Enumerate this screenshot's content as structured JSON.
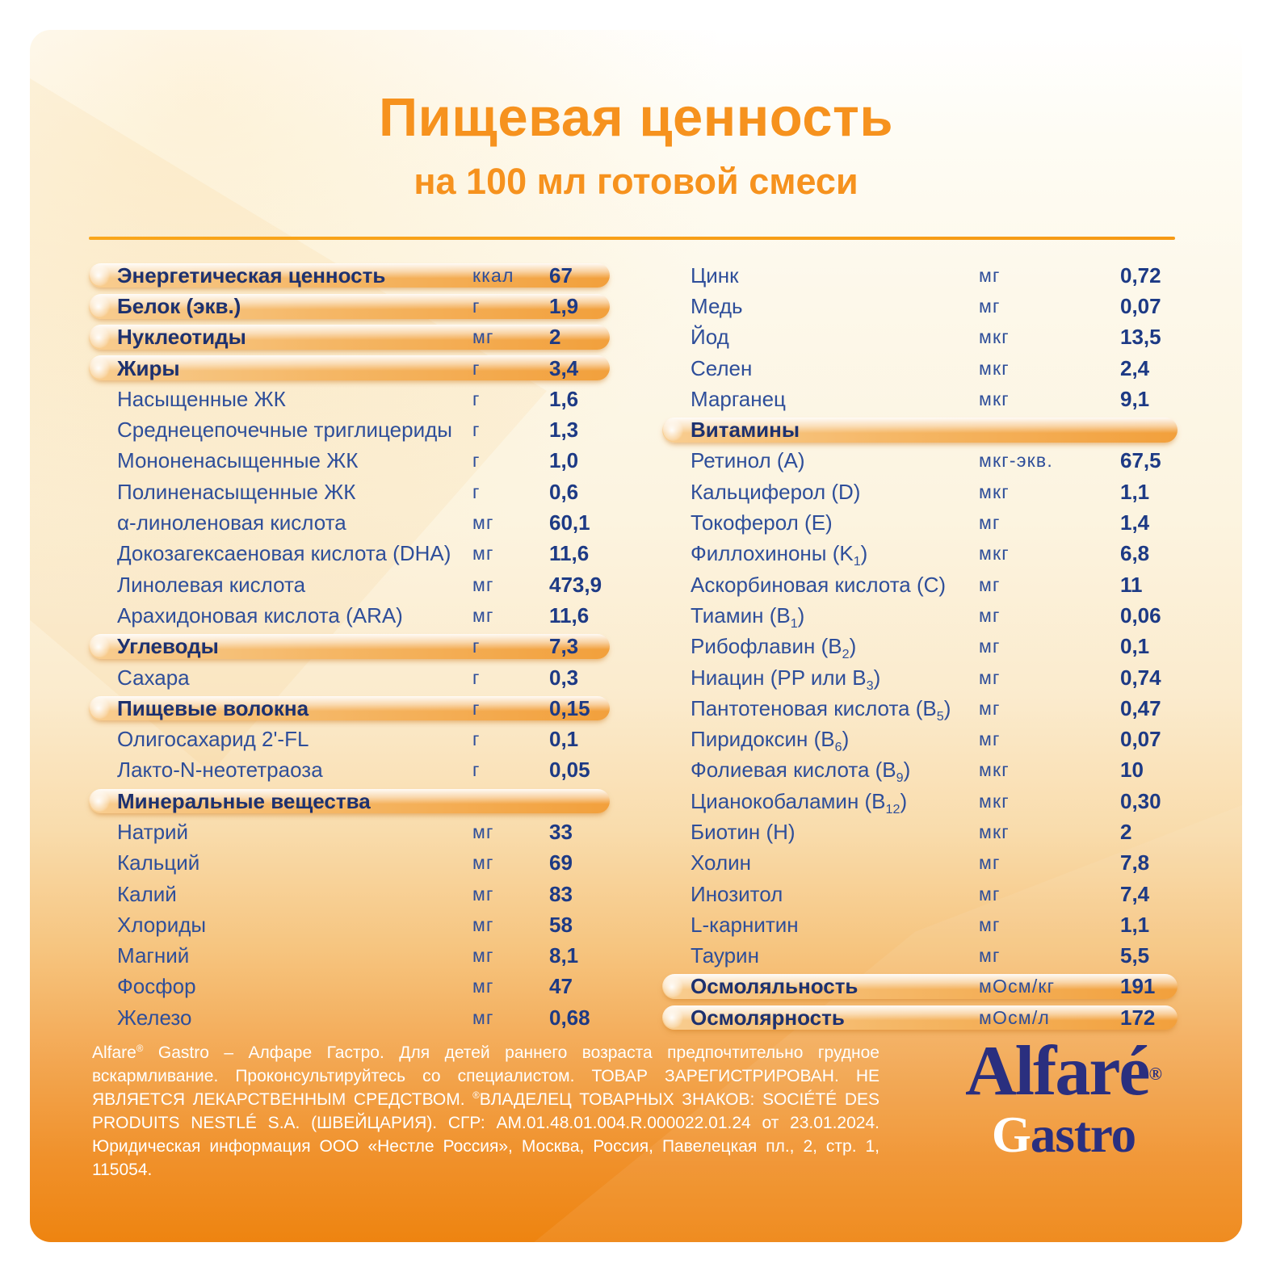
{
  "header": {
    "title": "Пищевая ценность",
    "subtitle": "на 100 мл готовой смеси"
  },
  "colors": {
    "accent_orange": "#F6921E",
    "text_navy": "#2E4E9A",
    "value_navy": "#1D3A85",
    "pill_orange": "#F2A03C",
    "background_bottom_orange": "#EE8410",
    "logo_navy": "#2A2F7F"
  },
  "table": {
    "left_rows": [
      {
        "label": "Энергетическая ценность",
        "unit": "ккал",
        "value": "67",
        "style": "pill"
      },
      {
        "label": "Белок (экв.)",
        "unit": "г",
        "value": "1,9",
        "style": "pill"
      },
      {
        "label": "Нуклеотиды",
        "unit": "мг",
        "value": "2",
        "style": "pill"
      },
      {
        "label": "Жиры",
        "unit": "г",
        "value": "3,4",
        "style": "pill"
      },
      {
        "label": "Насыщенные ЖК",
        "unit": "г",
        "value": "1,6"
      },
      {
        "label": "Среднецепочечные триглицериды",
        "unit": "г",
        "value": "1,3"
      },
      {
        "label": "Мононенасыщенные ЖК",
        "unit": "г",
        "value": "1,0"
      },
      {
        "label": "Полиненасыщенные ЖК",
        "unit": "г",
        "value": "0,6"
      },
      {
        "label": "α-линоленовая кислота",
        "unit": "мг",
        "value": "60,1"
      },
      {
        "label": "Докозагексаеновая кислота (DHA)",
        "unit": "мг",
        "value": "11,6"
      },
      {
        "label": "Линолевая кислота",
        "unit": "мг",
        "value": "473,9"
      },
      {
        "label": "Арахидоновая кислота (ARA)",
        "unit": "мг",
        "value": "11,6"
      },
      {
        "label": "Углеводы",
        "unit": "г",
        "value": "7,3",
        "style": "pill"
      },
      {
        "label": "Сахара",
        "unit": "г",
        "value": "0,3"
      },
      {
        "label": "Пищевые волокна",
        "unit": "г",
        "value": "0,15",
        "style": "pill"
      },
      {
        "label": "Олигосахарид 2'-FL",
        "unit": "г",
        "value": "0,1"
      },
      {
        "label": "Лакто-N-неотетраоза",
        "unit": "г",
        "value": "0,05"
      },
      {
        "label": "Минеральные вещества",
        "style": "section"
      },
      {
        "label": "Натрий",
        "unit": "мг",
        "value": "33"
      },
      {
        "label": "Кальций",
        "unit": "мг",
        "value": "69"
      },
      {
        "label": "Калий",
        "unit": "мг",
        "value": "83"
      },
      {
        "label": "Хлориды",
        "unit": "мг",
        "value": "58"
      },
      {
        "label": "Магний",
        "unit": "мг",
        "value": "8,1"
      },
      {
        "label": "Фосфор",
        "unit": "мг",
        "value": "47"
      },
      {
        "label": "Железо",
        "unit": "мг",
        "value": "0,68"
      }
    ],
    "right_rows": [
      {
        "label": "Цинк",
        "unit": "мг",
        "value": "0,72"
      },
      {
        "label": "Медь",
        "unit": "мг",
        "value": "0,07"
      },
      {
        "label": "Йод",
        "unit": "мкг",
        "value": "13,5"
      },
      {
        "label": "Селен",
        "unit": "мкг",
        "value": "2,4"
      },
      {
        "label": "Марганец",
        "unit": "мкг",
        "value": "9,1"
      },
      {
        "label": "Витамины",
        "style": "section"
      },
      {
        "label": "Ретинол (A)",
        "unit": "мкг-экв.",
        "value": "67,5"
      },
      {
        "label": "Кальциферол (D)",
        "unit": "мкг",
        "value": "1,1"
      },
      {
        "label": "Токоферол (E)",
        "unit": "мг",
        "value": "1,4"
      },
      {
        "label": "Филлохиноны (K_{1})",
        "unit": "мкг",
        "value": "6,8"
      },
      {
        "label": "Аскорбиновая кислота (C)",
        "unit": "мг",
        "value": "11"
      },
      {
        "label": "Тиамин (B_{1})",
        "unit": "мг",
        "value": "0,06"
      },
      {
        "label": "Рибофлавин (B_{2})",
        "unit": "мг",
        "value": "0,1"
      },
      {
        "label": "Ниацин (PP или B_{3})",
        "unit": "мг",
        "value": "0,74"
      },
      {
        "label": "Пантотеновая кислота (B_{5})",
        "unit": "мг",
        "value": "0,47"
      },
      {
        "label": "Пиридоксин (B_{6})",
        "unit": "мг",
        "value": "0,07"
      },
      {
        "label": "Фолиевая кислота (B_{9})",
        "unit": "мкг",
        "value": "10"
      },
      {
        "label": "Цианокобаламин (B_{12})",
        "unit": "мкг",
        "value": "0,30"
      },
      {
        "label": "Биотин (H)",
        "unit": "мкг",
        "value": "2"
      },
      {
        "label": "Холин",
        "unit": "мг",
        "value": "7,8"
      },
      {
        "label": "Инозитол",
        "unit": "мг",
        "value": "7,4"
      },
      {
        "label": "L-карнитин",
        "unit": "мг",
        "value": "1,1"
      },
      {
        "label": "Таурин",
        "unit": "мг",
        "value": "5,5"
      },
      {
        "label": "Осмоляльность",
        "unit": "мОсм/кг",
        "value": "191",
        "style": "pill"
      },
      {
        "label": "Осмолярность",
        "unit": "мОсм/л",
        "value": "172",
        "style": "pill"
      }
    ]
  },
  "footer": {
    "disclaimer": "Alfare^{®} Gastro – Алфаре Гастро. Для детей раннего возраста предпочтительно грудное вскармливание. Проконсультируйтесь со специалистом. ТОВАР ЗАРЕГИСТРИРОВАН. НЕ ЯВЛЯЕТСЯ ЛЕКАРСТВЕННЫМ СРЕДСТВОМ. ^{®}ВЛАДЕЛЕЦ ТОВАРНЫХ ЗНАКОВ: SOCIÉTÉ DES PRODUITS NESTLÉ S.A. (ШВЕЙЦАРИЯ). СГР: AM.01.48.01.004.R.000022.01.24 от 23.01.2024. Юридическая информация ООО «Нестле Россия», Москва, Россия, Павелецкая пл., 2, стр. 1, 115054.",
    "logo": {
      "brand": "Alfaré",
      "reg": "®",
      "sub_first": "G",
      "sub_rest": "astro"
    }
  }
}
